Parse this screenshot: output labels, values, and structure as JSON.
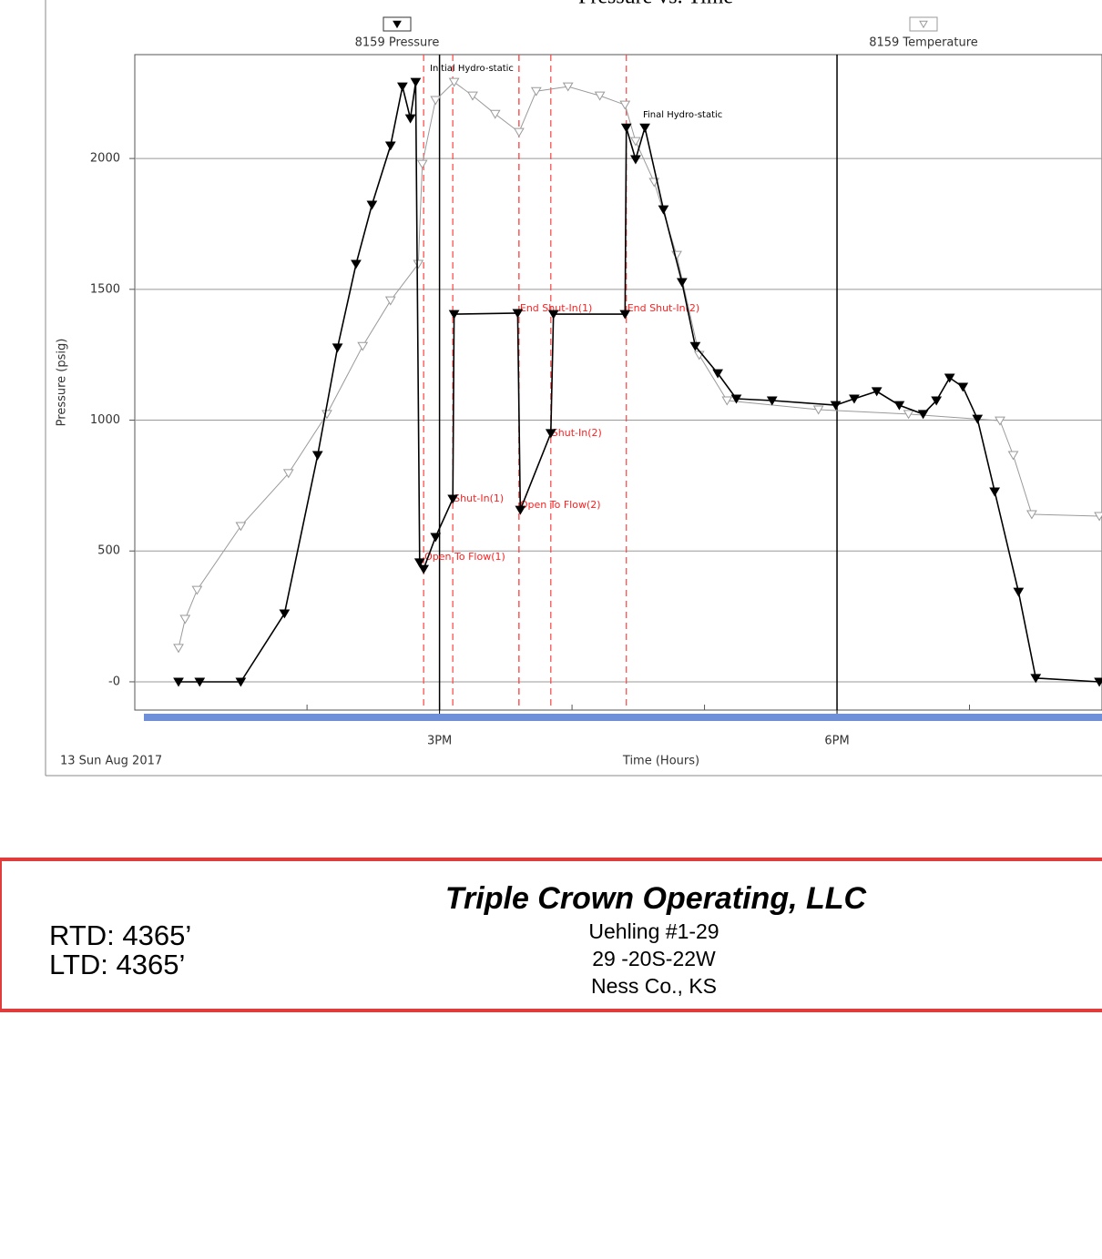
{
  "chart_data": {
    "type": "line",
    "title": "Pressure vs. Time",
    "x_label": "Time (Hours)",
    "y_label": "Pressure (psig)",
    "date_label": "13 Sun Aug 2017",
    "xlim": [
      12.7,
      20.0
    ],
    "ylim": [
      -108,
      2397
    ],
    "xticks": [
      {
        "value": 15,
        "label": "3PM"
      },
      {
        "value": 18,
        "label": "6PM"
      }
    ],
    "xminor_ticks": [
      14,
      16,
      17,
      19
    ],
    "yticks": [
      {
        "value": 0,
        "label": "-0"
      },
      500,
      1000,
      1500,
      2000
    ],
    "grid": true,
    "series": [
      {
        "name": "8159 Pressure",
        "color": "#000000",
        "marker_fill": "#000000",
        "x": [
          13.03,
          13.19,
          13.5,
          13.83,
          14.08,
          14.23,
          14.37,
          14.49,
          14.63,
          14.72,
          14.78,
          14.82,
          14.85,
          14.88,
          14.97,
          15.1,
          15.11,
          15.59,
          15.61,
          15.84,
          15.86,
          16.4,
          16.41,
          16.48,
          16.55,
          16.69,
          16.83,
          16.93,
          17.1,
          17.24,
          17.51,
          17.99,
          18.13,
          18.3,
          18.47,
          18.65,
          18.75,
          18.85,
          18.95,
          19.06,
          19.19,
          19.37,
          19.5,
          19.98
        ],
        "values": [
          0,
          0,
          0,
          261,
          866,
          1277,
          1597,
          1823,
          2049,
          2275,
          2153,
          2292,
          456,
          431,
          553,
          699,
          1405,
          1409,
          657,
          950,
          1405,
          1405,
          2118,
          1997,
          2118,
          1805,
          1527,
          1283,
          1179,
          1082,
          1075,
          1057,
          1082,
          1110,
          1057,
          1023,
          1075,
          1162,
          1127,
          1005,
          727,
          344,
          14,
          0
        ]
      },
      {
        "name": "8159 Temperature",
        "color": "#9a9a9a",
        "marker_fill": "#ffffff",
        "x": [
          13.03,
          13.08,
          13.17,
          13.5,
          13.86,
          14.15,
          14.42,
          14.63,
          14.84,
          14.87,
          14.97,
          15.11,
          15.25,
          15.42,
          15.6,
          15.73,
          15.97,
          16.21,
          16.4,
          16.48,
          16.62,
          16.79,
          16.96,
          17.17,
          17.86,
          18.54,
          19.23,
          19.33,
          19.47,
          19.98
        ],
        "values": [
          129,
          240,
          351,
          595,
          797,
          1023,
          1283,
          1457,
          1597,
          1979,
          2223,
          2292,
          2240,
          2170,
          2101,
          2257,
          2275,
          2240,
          2205,
          2066,
          1910,
          1631,
          1249,
          1075,
          1040,
          1023,
          998,
          866,
          640,
          633
        ]
      }
    ],
    "events": [
      {
        "x": 14.88,
        "label": "Open To Flow(1)"
      },
      {
        "x": 15.1,
        "label": "Shut-In(1)"
      },
      {
        "x": 15.6,
        "label": "End Shut-In(1)"
      },
      {
        "x": 15.6,
        "label": "Open To Flow(2)"
      },
      {
        "x": 15.84,
        "label": "Shut-In(2)"
      },
      {
        "x": 16.41,
        "label": "End Shut-In(2)"
      }
    ],
    "annotations": [
      "Initial Hydro-static",
      "Final Hydro-static"
    ]
  },
  "footer": {
    "company": "Triple Crown Operating, LLC",
    "lines": [
      "Uehling #1-29",
      "29 -20S-22W",
      "Ness Co., KS"
    ],
    "rtd": "RTD: 4365’",
    "ltd": "LTD: 4365’"
  }
}
